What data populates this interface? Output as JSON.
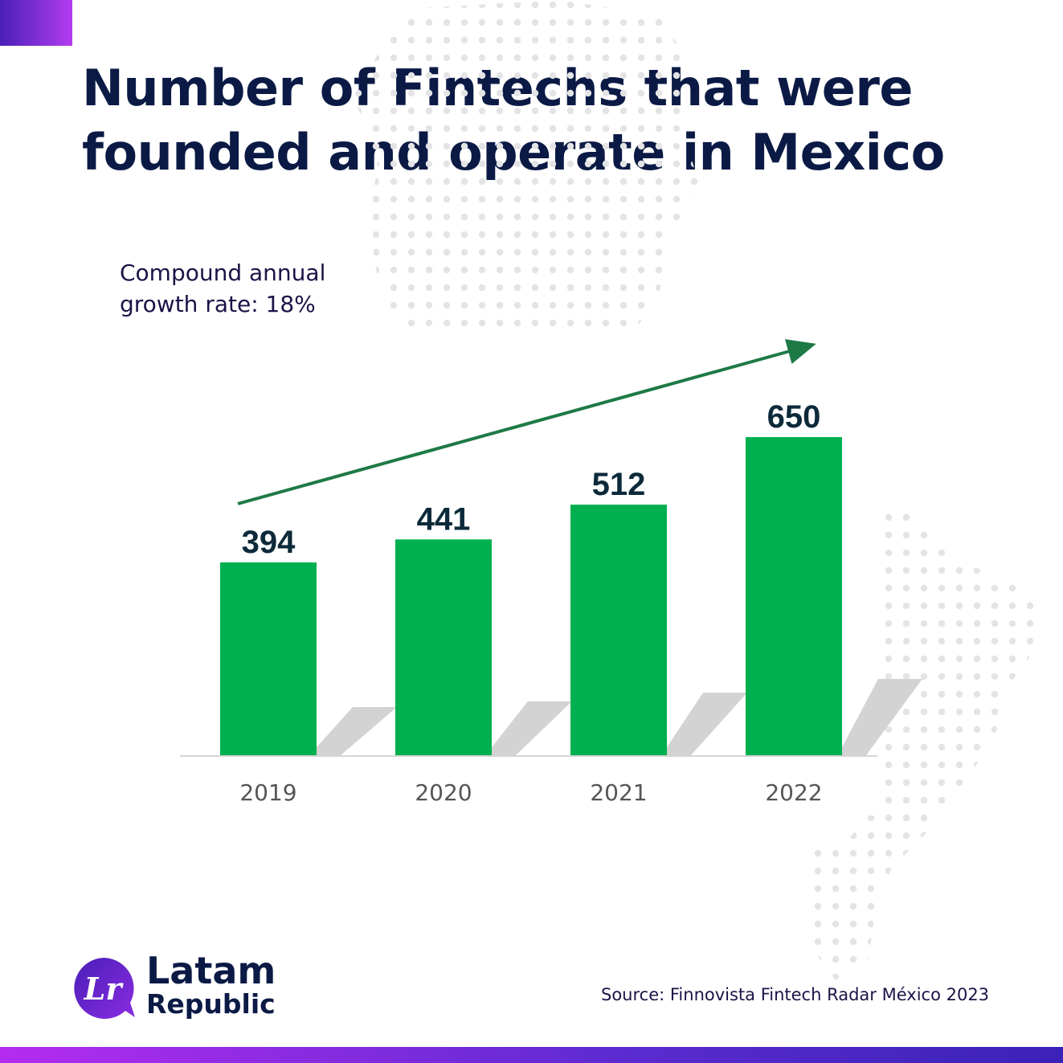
{
  "title": {
    "line1": "Number of Fintechs that were",
    "line2": "founded and operate in Mexico"
  },
  "annotation": {
    "line1": "Compound annual",
    "line2": "growth rate: 18%"
  },
  "chart_data": {
    "type": "bar",
    "categories": [
      "2019",
      "2020",
      "2021",
      "2022"
    ],
    "values": [
      394,
      441,
      512,
      650
    ],
    "ylim": [
      0,
      650
    ],
    "bar_color": "#00b050",
    "label_color": "#0d2a3a",
    "trend_arrow": true,
    "grid": false,
    "legend": "none"
  },
  "source": "Source: Finnovista Fintech Radar México 2023",
  "logo": {
    "mark_text": "Lr",
    "line1": "Latam",
    "line2": "Republic"
  },
  "colors": {
    "title": "#0b1a45",
    "accent_purple": "#7a2ee0",
    "bar_green": "#00b050",
    "arrow_green": "#1e7a45"
  }
}
